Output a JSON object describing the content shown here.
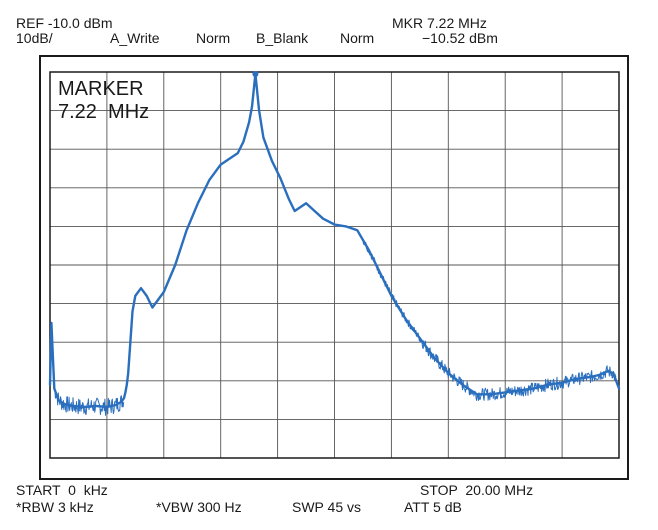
{
  "header": {
    "ref_label": "REF -10.0 dBm",
    "scale_label": "10dB/",
    "trace_a": "A_Write",
    "trace_a_mode": "Norm",
    "trace_b": "B_Blank",
    "trace_b_mode": "Norm",
    "marker_freq": "MKR 7.22 MHz",
    "marker_level": "−10.52 dBm"
  },
  "marker_box": {
    "title": "MARKER",
    "value": "7.22  MHz"
  },
  "footer": {
    "start": "START  0  kHz",
    "stop": "STOP  20.00 MHz",
    "rbw": "*RBW 3 kHz",
    "vbw": "*VBW 300 Hz",
    "sweep": "SWP 45 vs",
    "attenuation": "ATT 5 dB"
  },
  "colors": {
    "trace": "#2a6ebe",
    "grid": "#555555",
    "frame": "#1a1a1a"
  },
  "chart_data": {
    "type": "line",
    "title": "",
    "xlabel": "",
    "ylabel": "",
    "xlim": [
      0,
      20
    ],
    "ylim": [
      -110,
      -10
    ],
    "x_unit": "MHz",
    "y_unit": "dBm",
    "grid": true,
    "divisions": {
      "x": 10,
      "y": 10
    },
    "marker": {
      "x": 7.22,
      "y": -10.52
    },
    "series": [
      {
        "x": [
          0,
          0.05,
          0.15,
          0.3,
          0.5,
          0.8,
          1.2,
          1.6,
          2.0,
          2.3,
          2.5,
          2.6,
          2.65,
          2.7,
          2.75,
          2.9,
          3.0,
          3.2,
          3.4,
          3.6,
          4.0,
          4.4,
          4.8,
          5.2,
          5.6,
          6.0,
          6.3,
          6.6,
          6.8,
          7.0,
          7.1,
          7.22,
          7.35,
          7.5,
          7.8,
          8.1,
          8.4,
          8.6,
          8.8,
          9.0,
          9.3,
          9.6,
          10.0,
          10.4,
          10.8,
          11.2,
          11.6,
          12.0,
          12.5,
          13.0,
          13.5,
          14.0,
          14.5,
          15.0,
          15.5,
          16.0,
          16.5,
          17.0,
          17.5,
          18.0,
          18.5,
          19.0,
          19.3,
          19.6,
          19.8,
          20.0
        ],
        "y": [
          -91,
          -75,
          -92,
          -95,
          -96,
          -96.5,
          -96.8,
          -96.5,
          -96.8,
          -96.3,
          -95.5,
          -94.5,
          -93,
          -91,
          -88,
          -72,
          -68,
          -66,
          -68,
          -71,
          -67,
          -60,
          -51,
          -44,
          -38,
          -34,
          -32.5,
          -31,
          -28,
          -23,
          -19,
          -10.5,
          -20,
          -27,
          -33,
          -37.5,
          -43,
          -46,
          -45,
          -44,
          -46,
          -48,
          -49.5,
          -50,
          -51,
          -56,
          -62,
          -68,
          -74,
          -79,
          -84,
          -88,
          -91,
          -93.5,
          -93.5,
          -93,
          -92.5,
          -92,
          -91,
          -90.5,
          -89.5,
          -89,
          -88.5,
          -87.5,
          -88,
          -92
        ]
      }
    ]
  }
}
